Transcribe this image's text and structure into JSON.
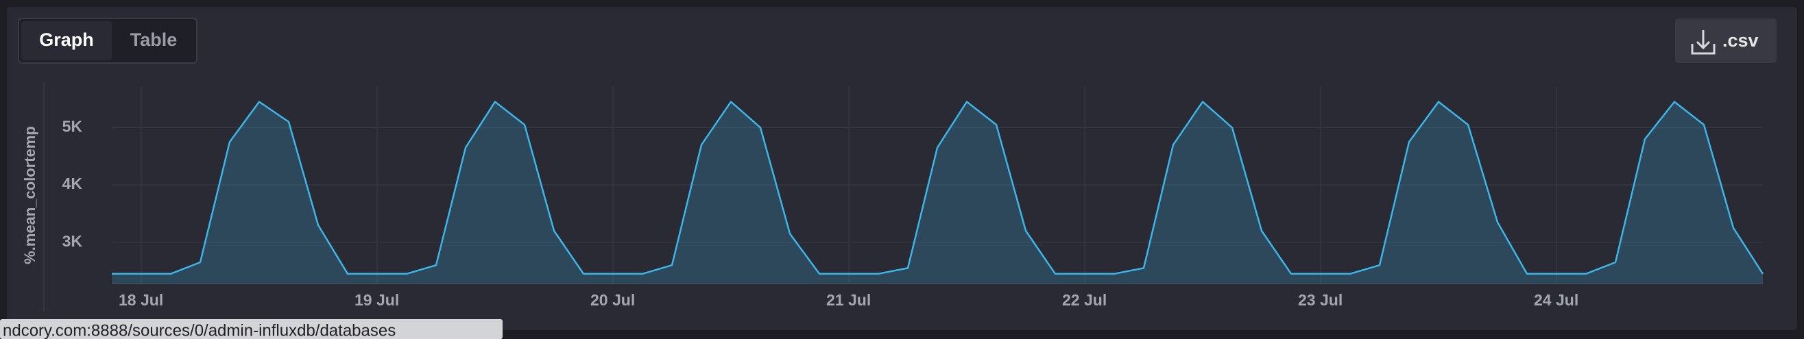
{
  "tabs": [
    "Graph",
    "Table"
  ],
  "download_button": ".csv",
  "status_bar": "ndcory.com:8888/sources/0/admin-influxdb/databases",
  "chart_data": {
    "type": "line",
    "y_label": "%.mean_colortemp",
    "color": "#3cb6e8",
    "area": true,
    "grid": true,
    "categories": [
      null,
      "18 Jul",
      null,
      null,
      null,
      null,
      null,
      null,
      null,
      "19 Jul",
      null,
      null,
      null,
      null,
      null,
      null,
      null,
      "20 Jul",
      null,
      null,
      null,
      null,
      null,
      null,
      null,
      "21 Jul",
      null,
      null,
      null,
      null,
      null,
      null,
      null,
      "22 Jul",
      null,
      null,
      null,
      null,
      null,
      null,
      null,
      "23 Jul",
      null,
      null,
      null,
      null,
      null,
      null,
      null,
      "24 Jul",
      null,
      null,
      null,
      null,
      null,
      null,
      null
    ],
    "values": [
      2450,
      2450,
      2450,
      2650,
      4750,
      5450,
      5100,
      3300,
      2450,
      2450,
      2450,
      2600,
      4650,
      5450,
      5050,
      3200,
      2450,
      2450,
      2450,
      2600,
      4700,
      5450,
      5000,
      3150,
      2450,
      2450,
      2450,
      2550,
      4650,
      5450,
      5050,
      3200,
      2450,
      2450,
      2450,
      2550,
      4700,
      5450,
      5000,
      3200,
      2450,
      2450,
      2450,
      2600,
      4750,
      5450,
      5050,
      3350,
      2450,
      2450,
      2450,
      2650,
      4800,
      5450,
      5050,
      3250,
      2450
    ],
    "ylim": [
      2280,
      5720
    ],
    "yticks": [
      {
        "value": 3000,
        "label": "3K"
      },
      {
        "value": 4000,
        "label": "4K"
      },
      {
        "value": 5000,
        "label": "5K"
      }
    ]
  }
}
